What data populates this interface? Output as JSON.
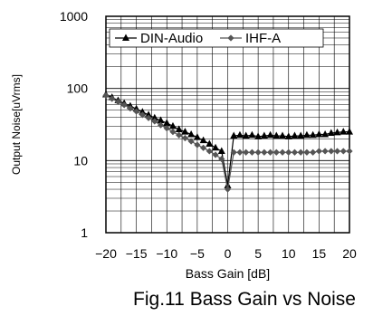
{
  "chart_data": {
    "type": "line",
    "caption": "Fig.11 Bass Gain vs Noise",
    "xlabel": "Bass Gain [dB]",
    "ylabel": "Output Noise[uVrms]",
    "xlim": [
      -20,
      20
    ],
    "ylim": [
      1,
      1000
    ],
    "y_scale": "log",
    "grid": true,
    "legend_position": "top",
    "x_ticks": [
      -20,
      -15,
      -10,
      -5,
      0,
      5,
      10,
      15,
      20
    ],
    "x_tick_labels": [
      "−20",
      "−15",
      "−10",
      "−5",
      "0",
      "5",
      "10",
      "15",
      "20"
    ],
    "y_ticks": [
      1,
      10,
      100,
      1000
    ],
    "y_tick_labels": [
      "1",
      "10",
      "100",
      "1000"
    ],
    "x": [
      -20,
      -19,
      -18,
      -17,
      -16,
      -15,
      -14,
      -13,
      -12,
      -11,
      -10,
      -9,
      -8,
      -7,
      -6,
      -5,
      -4,
      -3,
      -2,
      -1,
      0,
      1,
      2,
      3,
      4,
      5,
      6,
      7,
      8,
      9,
      10,
      11,
      12,
      13,
      14,
      15,
      16,
      17,
      18,
      19,
      20
    ],
    "series": [
      {
        "name": "DIN-Audio",
        "marker": "triangle",
        "color": "#000000",
        "values": [
          82,
          75,
          68,
          62,
          57,
          52,
          47,
          43,
          39,
          36,
          33,
          30,
          27,
          25,
          23,
          21,
          19,
          17,
          15,
          13.5,
          4.5,
          22,
          22.5,
          22,
          22.5,
          21.5,
          22,
          22.5,
          22,
          22,
          21.5,
          22,
          22,
          22.5,
          22.5,
          23,
          23,
          24,
          24.5,
          25,
          25
        ]
      },
      {
        "name": "IHF-A",
        "marker": "diamond",
        "color": "#555555",
        "values": [
          80,
          72,
          65,
          59,
          53,
          48,
          43,
          39,
          35,
          31,
          28,
          25,
          22.5,
          20.5,
          18.5,
          16.5,
          15,
          13.5,
          12,
          10.5,
          4,
          13,
          13,
          13,
          13,
          13,
          13,
          13,
          13,
          13,
          13,
          13,
          13,
          13,
          13,
          13.5,
          13.5,
          13.5,
          13.5,
          13.5,
          13.5
        ]
      }
    ]
  }
}
